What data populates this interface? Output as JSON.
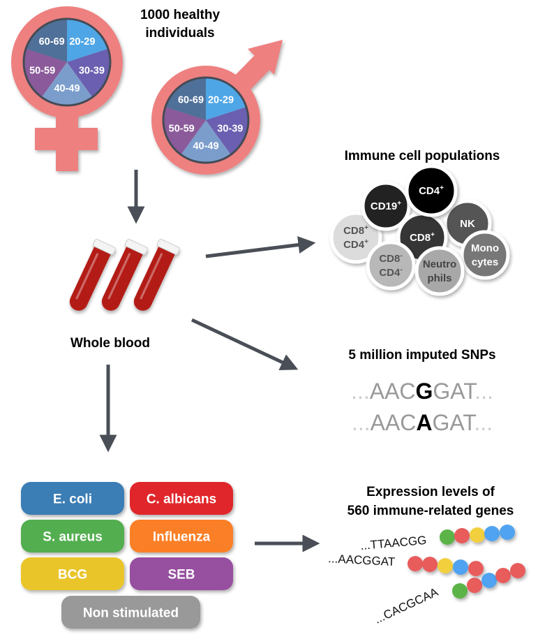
{
  "header": {
    "title_line1": "1000 healthy individuals",
    "title_line1_a": "1000 healthy",
    "title_line1_b": "individuals"
  },
  "age_groups": [
    {
      "label": "20-29",
      "color": "#4fa6e6"
    },
    {
      "label": "30-39",
      "color": "#6a5fb0"
    },
    {
      "label": "40-49",
      "color": "#7b9dcc"
    },
    {
      "label": "50-59",
      "color": "#8a5a9a"
    },
    {
      "label": "60-69",
      "color": "#4f7099"
    }
  ],
  "symbol_color": "#ee8080",
  "arrow_color": "#4a4f57",
  "blood": {
    "label": "Whole blood",
    "tube_color": "#b31d18"
  },
  "immune": {
    "title": "Immune cell populations",
    "cells": [
      {
        "lines": [
          [
            "CD8",
            "+"
          ],
          [
            "CD4",
            "+"
          ]
        ],
        "fill": "#dcdcdc",
        "text": "#555"
      },
      {
        "lines": [
          [
            "CD19",
            "+"
          ]
        ],
        "fill": "#222222",
        "text": "#fff"
      },
      {
        "lines": [
          [
            "NK",
            ""
          ]
        ],
        "fill": "#555555",
        "text": "#fff"
      },
      {
        "lines": [
          [
            "CD8",
            "+"
          ]
        ],
        "fill": "#363636",
        "text": "#fff"
      },
      {
        "lines": [
          [
            "CD4",
            "+"
          ]
        ],
        "fill": "#000000",
        "text": "#fff"
      },
      {
        "lines": [
          [
            "CD8",
            "-"
          ],
          [
            "CD4",
            "-"
          ]
        ],
        "fill": "#b8b8b8",
        "text": "#555"
      },
      {
        "lines": [
          [
            "Mono",
            ""
          ],
          [
            "cytes",
            ""
          ]
        ],
        "fill": "#777777",
        "text": "#fff"
      },
      {
        "lines": [
          [
            "Neutro",
            ""
          ],
          [
            "phils",
            ""
          ]
        ],
        "fill": "#a8a8a8",
        "text": "#444"
      }
    ]
  },
  "snps": {
    "title": "5 million imputed SNPs",
    "rows": [
      {
        "prefix": "...",
        "before": "AAC",
        "variant": "G",
        "after": "GAT",
        "suffix": "..."
      },
      {
        "prefix": "...",
        "before": "AAC",
        "variant": "A",
        "after": "GAT",
        "suffix": "..."
      }
    ]
  },
  "expression": {
    "title_line1": "Expression levels of",
    "title_line2": "560 immune-related genes",
    "genes": [
      {
        "seq": "...TTAACGG",
        "beads": [
          "#5cb347",
          "#e85c5c",
          "#f2cf3c",
          "#4fa3f0",
          "#4fa3f0"
        ]
      },
      {
        "seq": "...AACGGAT",
        "beads": [
          "#e85c5c",
          "#e85c5c",
          "#f2cf3c",
          "#4fa3f0",
          "#e85c5c"
        ]
      },
      {
        "seq": "...CACGCAA",
        "beads": [
          "#5cb347",
          "#e85c5c",
          "#4fa3f0",
          "#e85c5c",
          "#e85c5c"
        ]
      }
    ]
  },
  "stimuli": [
    {
      "label": "E. coli",
      "color": "#3a7db5"
    },
    {
      "label": "C. albicans",
      "color": "#e0262b"
    },
    {
      "label": "S. aureus",
      "color": "#52ae4f"
    },
    {
      "label": "Influenza",
      "color": "#fb7f26"
    },
    {
      "label": "BCG",
      "color": "#e9c52c"
    },
    {
      "label": "SEB",
      "color": "#974fa0"
    },
    {
      "label": "Non stimulated",
      "color": "#999999"
    }
  ]
}
